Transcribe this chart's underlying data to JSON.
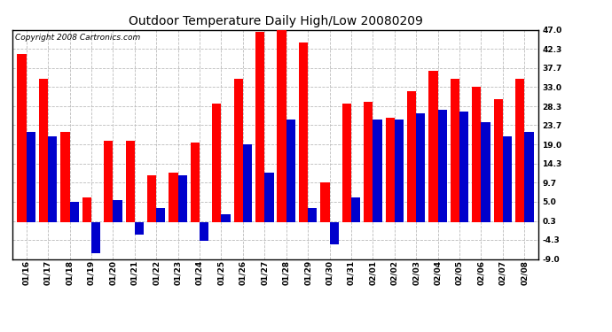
{
  "title": "Outdoor Temperature Daily High/Low 20080209",
  "copyright": "Copyright 2008 Cartronics.com",
  "dates": [
    "01/16",
    "01/17",
    "01/18",
    "01/19",
    "01/20",
    "01/21",
    "01/22",
    "01/23",
    "01/24",
    "01/25",
    "01/26",
    "01/27",
    "01/28",
    "01/29",
    "01/30",
    "01/31",
    "02/01",
    "02/02",
    "02/03",
    "02/04",
    "02/05",
    "02/06",
    "02/07",
    "02/08"
  ],
  "highs": [
    41.0,
    35.0,
    22.0,
    6.0,
    20.0,
    20.0,
    11.5,
    12.0,
    19.5,
    29.0,
    35.0,
    46.5,
    47.0,
    44.0,
    9.7,
    29.0,
    29.5,
    25.5,
    32.0,
    37.0,
    35.0,
    33.0,
    30.0,
    35.0
  ],
  "lows": [
    22.0,
    21.0,
    5.0,
    -7.5,
    5.5,
    -3.0,
    3.5,
    11.5,
    -4.5,
    2.0,
    19.0,
    12.0,
    25.0,
    3.5,
    -5.5,
    6.0,
    25.0,
    25.0,
    26.5,
    27.5,
    27.0,
    24.5,
    21.0,
    22.0
  ],
  "high_color": "#ff0000",
  "low_color": "#0000cc",
  "bg_color": "#ffffff",
  "grid_color": "#bbbbbb",
  "yticks": [
    47.0,
    42.3,
    37.7,
    33.0,
    28.3,
    23.7,
    19.0,
    14.3,
    9.7,
    5.0,
    0.3,
    -4.3,
    -9.0
  ],
  "ymin": -9.0,
  "ymax": 47.0,
  "title_fontsize": 10,
  "copyright_fontsize": 6.5,
  "tick_fontsize": 6.5,
  "bar_width": 0.42,
  "fig_width": 6.9,
  "fig_height": 3.75
}
